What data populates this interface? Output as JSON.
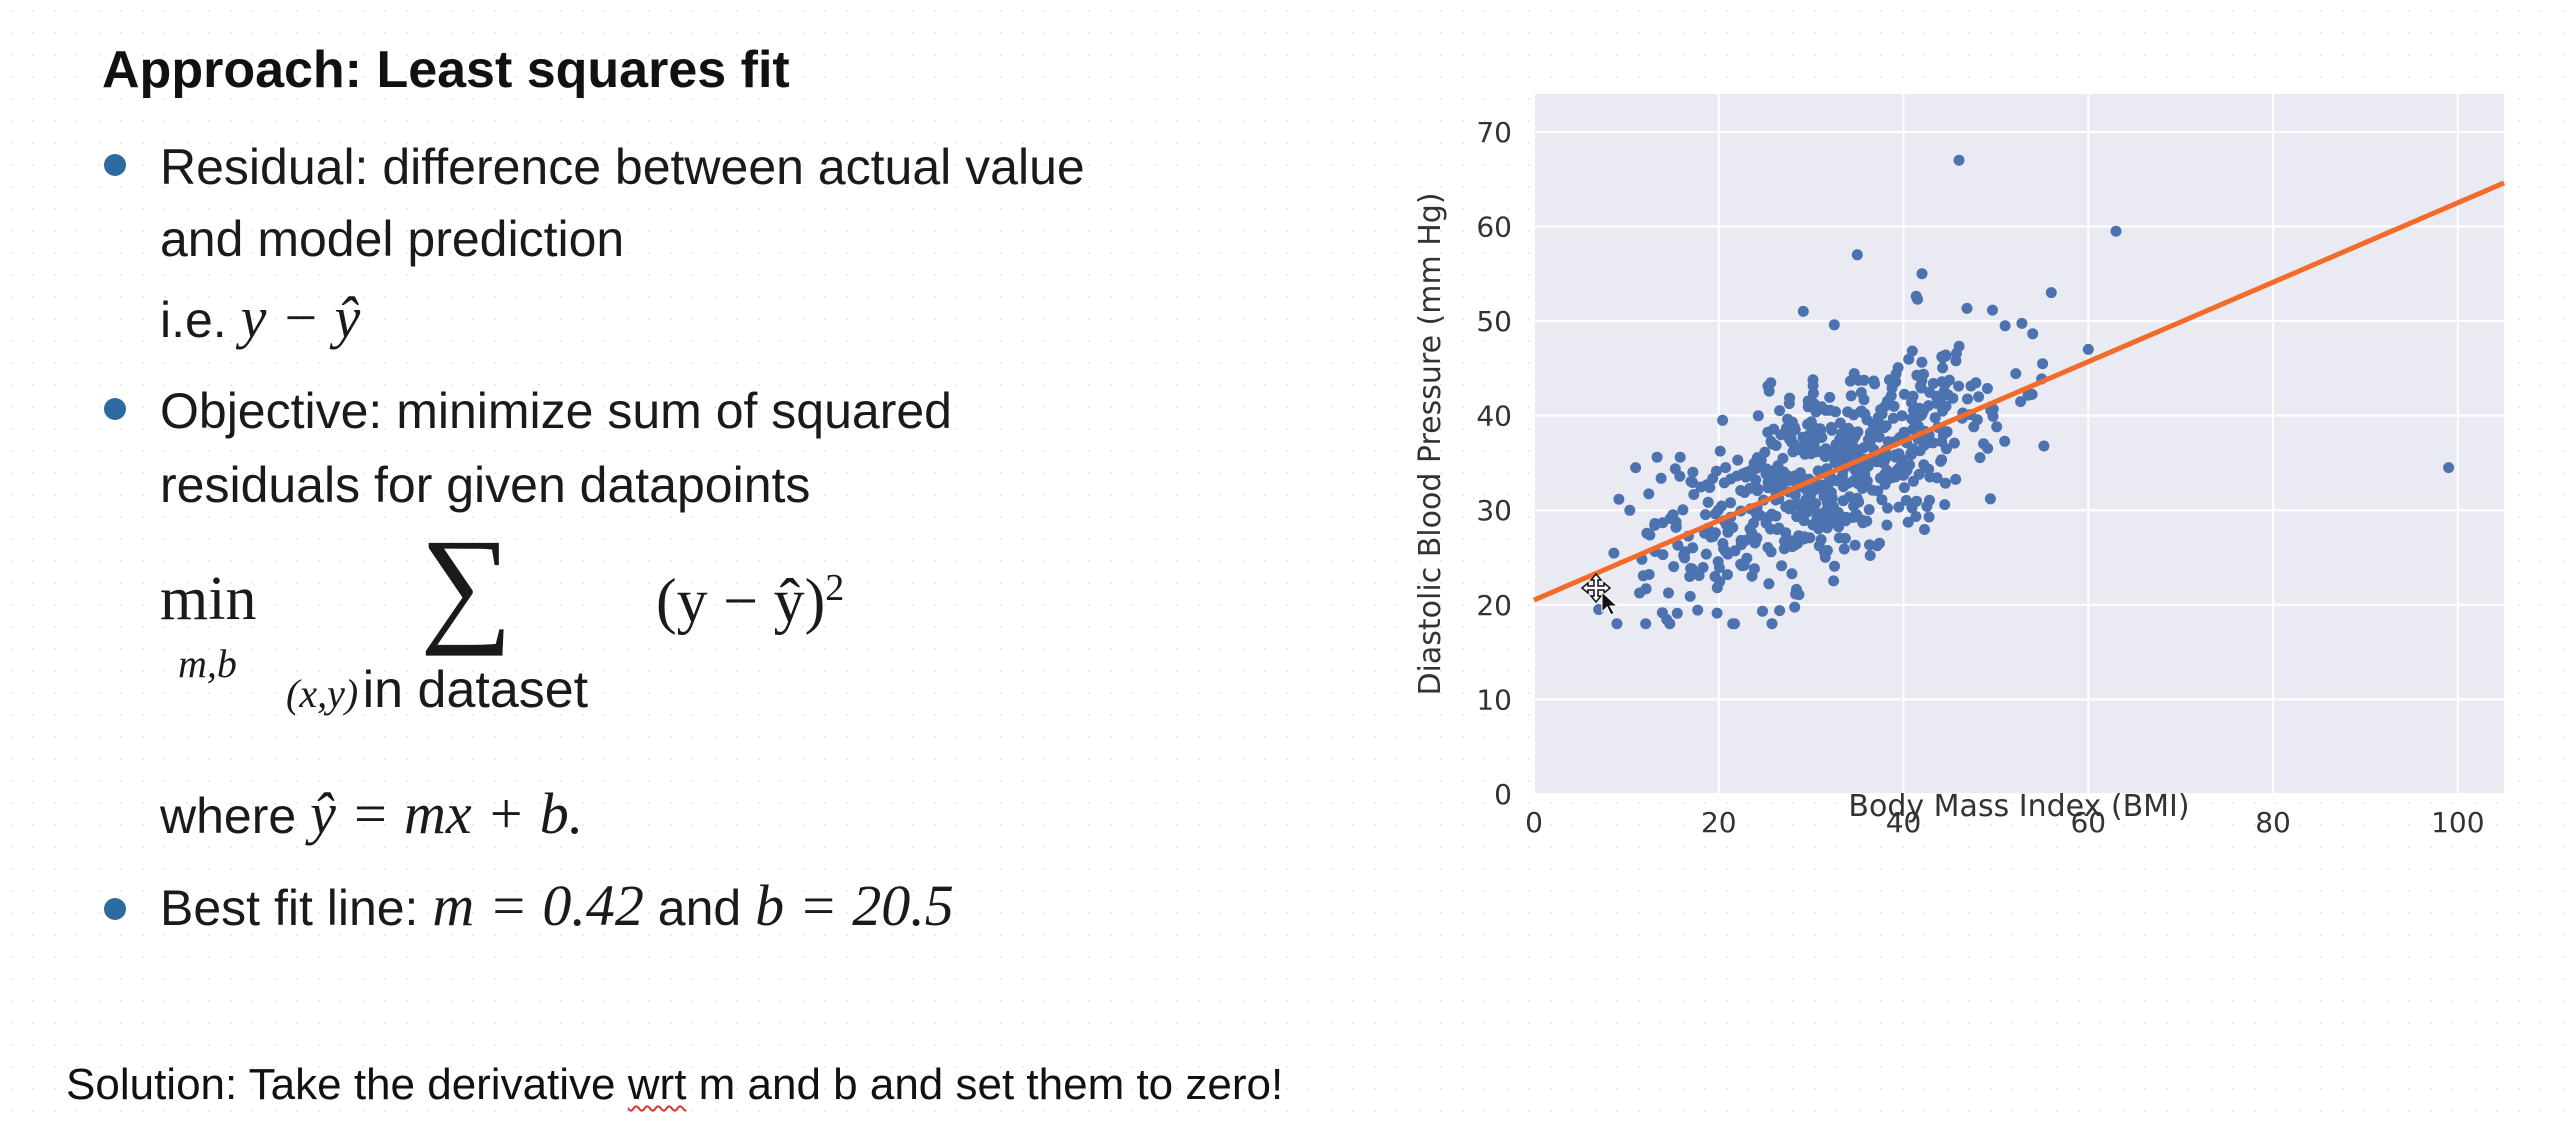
{
  "slide": {
    "title": "Approach: Least squares fit",
    "bullet1": {
      "line1": "Residual: difference between actual value",
      "line2": "and model prediction",
      "ie_label": "i.e.",
      "ie_expr": "y − ŷ"
    },
    "bullet2": {
      "line1": "Objective: minimize sum of squared",
      "line2": "residuals for given datapoints"
    },
    "formula": {
      "min": "min",
      "min_sub": "m,b",
      "sigma": "∑",
      "sum_sub_vars": "(x,y)",
      "sum_sub_text": "in dataset",
      "term": "(y − ŷ)",
      "exponent": "2",
      "where_label": "where",
      "where_expr": "ŷ = mx + b."
    },
    "bullet3": {
      "label": "Best fit line:",
      "m_expr": "m = 0.42",
      "and": "and",
      "b_expr": "b = 20.5"
    },
    "solution": {
      "before": "Solution: Take the derivative ",
      "underlined": "wrt",
      "after": " m and b and set them to zero!"
    }
  },
  "colors": {
    "bullet": "#2d6a9f",
    "plot_bg": "#eaeaf2",
    "points": "#4c72b0",
    "fit_line": "#f26b2a"
  },
  "chart_data": {
    "type": "scatter",
    "xlabel": "Body Mass Index (BMI)",
    "ylabel": "Diastolic Blood Pressure (mm Hg)",
    "xlim": [
      0,
      105
    ],
    "ylim": [
      0,
      74
    ],
    "xticks": [
      0,
      20,
      40,
      60,
      80,
      100
    ],
    "yticks": [
      0,
      10,
      20,
      30,
      40,
      50,
      60,
      70
    ],
    "grid": true,
    "fit_line": {
      "m": 0.42,
      "b": 20.5,
      "x": [
        0,
        105
      ]
    },
    "points_note": "dense cloud roughly BMI 7–55, pressure 18–55, plus outliers",
    "outliers": [
      {
        "x": 46,
        "y": 67
      },
      {
        "x": 63,
        "y": 59.5
      },
      {
        "x": 99,
        "y": 34.5
      },
      {
        "x": 35,
        "y": 57
      },
      {
        "x": 56,
        "y": 53
      },
      {
        "x": 42,
        "y": 55
      },
      {
        "x": 51,
        "y": 49.5
      },
      {
        "x": 60,
        "y": 47
      },
      {
        "x": 7,
        "y": 19.5
      },
      {
        "x": 11,
        "y": 34.5
      }
    ]
  }
}
